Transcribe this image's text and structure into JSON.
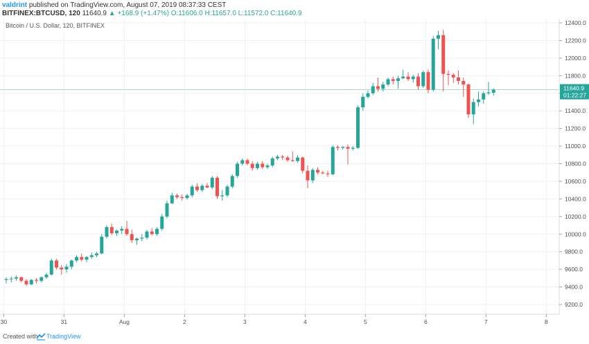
{
  "header": {
    "username": "valdrint",
    "published": "published on TradingView.com, August 07, 2019 08:37:33 CEST",
    "symbol": "BITFINEX:BTCUSD, 120",
    "last": "11640.9",
    "change": "▲ +168.9 (+1.47%)",
    "ohlc": "O:11606.0 H:11657.0 L:11572.0 C:11640.9"
  },
  "footer": {
    "created": "Created with",
    "brand": "TradingView"
  },
  "colors": {
    "up": "#26a69a",
    "down": "#ef5350",
    "grid": "#eef1f4",
    "priceLine": "#a7dbd4",
    "priceLabel": "#26a69a"
  },
  "chart_data": {
    "type": "candlestick",
    "title": "Bitcoin / U.S. Dollar, 120, BITFINEX",
    "xlabel": "",
    "ylabel": "",
    "ylim": [
      9000,
      12500
    ],
    "y_ticks": [
      9200,
      9400,
      9600,
      9800,
      10000,
      10200,
      10400,
      10600,
      10800,
      11000,
      11200,
      11400,
      11600,
      11800,
      12000,
      12200,
      12400
    ],
    "x_ticks": [
      {
        "label": "30",
        "bar": -0.5
      },
      {
        "label": "31",
        "bar": 11.5
      },
      {
        "label": "Aug",
        "bar": 23.5
      },
      {
        "label": "2",
        "bar": 35.5
      },
      {
        "label": "3",
        "bar": 47.5
      },
      {
        "label": "4",
        "bar": 59.5
      },
      {
        "label": "5",
        "bar": 71.5
      },
      {
        "label": "6",
        "bar": 83.5
      },
      {
        "label": "7",
        "bar": 95.5
      },
      {
        "label": "8",
        "bar": 107.5
      }
    ],
    "current_price": 11640.9,
    "current_price_label": "11640.9",
    "countdown": "01:22:27",
    "grid": true,
    "candles": [
      [
        9480,
        9510,
        9440,
        9490
      ],
      [
        9490,
        9520,
        9450,
        9495
      ],
      [
        9495,
        9530,
        9470,
        9510
      ],
      [
        9510,
        9520,
        9450,
        9470
      ],
      [
        9470,
        9490,
        9410,
        9430
      ],
      [
        9430,
        9490,
        9420,
        9480
      ],
      [
        9480,
        9500,
        9440,
        9470
      ],
      [
        9470,
        9520,
        9450,
        9510
      ],
      [
        9510,
        9560,
        9490,
        9540
      ],
      [
        9540,
        9720,
        9530,
        9700
      ],
      [
        9700,
        9720,
        9600,
        9620
      ],
      [
        9620,
        9650,
        9540,
        9600
      ],
      [
        9600,
        9660,
        9560,
        9630
      ],
      [
        9630,
        9710,
        9600,
        9700
      ],
      [
        9700,
        9760,
        9680,
        9740
      ],
      [
        9740,
        9780,
        9690,
        9710
      ],
      [
        9710,
        9750,
        9680,
        9740
      ],
      [
        9740,
        9790,
        9720,
        9760
      ],
      [
        9760,
        9800,
        9740,
        9780
      ],
      [
        9780,
        10000,
        9770,
        9970
      ],
      [
        9970,
        10100,
        9950,
        10080
      ],
      [
        10080,
        10120,
        9990,
        10010
      ],
      [
        10010,
        10050,
        9980,
        10040
      ],
      [
        10040,
        10090,
        10000,
        10060
      ],
      [
        10060,
        10150,
        9980,
        10000
      ],
      [
        10000,
        10050,
        9900,
        9930
      ],
      [
        9930,
        9960,
        9880,
        9950
      ],
      [
        9950,
        10000,
        9920,
        9960
      ],
      [
        9960,
        10050,
        9940,
        10030
      ],
      [
        10030,
        10070,
        9990,
        10000
      ],
      [
        10000,
        10080,
        9980,
        10060
      ],
      [
        10060,
        10230,
        10040,
        10200
      ],
      [
        10200,
        10380,
        10180,
        10350
      ],
      [
        10350,
        10470,
        10340,
        10440
      ],
      [
        10440,
        10460,
        10400,
        10420
      ],
      [
        10420,
        10450,
        10380,
        10410
      ],
      [
        10410,
        10460,
        10390,
        10440
      ],
      [
        10440,
        10560,
        10420,
        10540
      ],
      [
        10540,
        10580,
        10480,
        10500
      ],
      [
        10500,
        10570,
        10480,
        10550
      ],
      [
        10550,
        10580,
        10520,
        10530
      ],
      [
        10530,
        10660,
        10510,
        10640
      ],
      [
        10640,
        10660,
        10400,
        10430
      ],
      [
        10430,
        10500,
        10380,
        10440
      ],
      [
        10440,
        10560,
        10420,
        10540
      ],
      [
        10540,
        10680,
        10520,
        10660
      ],
      [
        10660,
        10820,
        10640,
        10800
      ],
      [
        10800,
        10860,
        10780,
        10840
      ],
      [
        10840,
        10860,
        10780,
        10800
      ],
      [
        10800,
        10830,
        10720,
        10750
      ],
      [
        10750,
        10820,
        10730,
        10800
      ],
      [
        10800,
        10830,
        10740,
        10760
      ],
      [
        10760,
        10800,
        10740,
        10780
      ],
      [
        10780,
        10880,
        10760,
        10860
      ],
      [
        10860,
        10900,
        10840,
        10880
      ],
      [
        10880,
        10900,
        10840,
        10870
      ],
      [
        10870,
        10890,
        10820,
        10840
      ],
      [
        10840,
        10940,
        10820,
        10830
      ],
      [
        10830,
        10900,
        10810,
        10870
      ],
      [
        10870,
        10880,
        10690,
        10720
      ],
      [
        10720,
        10780,
        10520,
        10610
      ],
      [
        10610,
        10750,
        10580,
        10730
      ],
      [
        10730,
        10760,
        10680,
        10700
      ],
      [
        10700,
        10720,
        10680,
        10690
      ],
      [
        10690,
        10720,
        10650,
        10680
      ],
      [
        10680,
        11010,
        10670,
        10990
      ],
      [
        10990,
        11010,
        10950,
        10980
      ],
      [
        10980,
        11000,
        10960,
        10990
      ],
      [
        10990,
        11020,
        10790,
        10970
      ],
      [
        10970,
        11000,
        10950,
        10980
      ],
      [
        10980,
        11460,
        10970,
        11440
      ],
      [
        11440,
        11600,
        11400,
        11560
      ],
      [
        11560,
        11630,
        11540,
        11600
      ],
      [
        11600,
        11720,
        11580,
        11680
      ],
      [
        11680,
        11780,
        11620,
        11650
      ],
      [
        11650,
        11730,
        11620,
        11700
      ],
      [
        11700,
        11780,
        11680,
        11760
      ],
      [
        11760,
        11790,
        11700,
        11740
      ],
      [
        11740,
        11800,
        11650,
        11770
      ],
      [
        11770,
        11870,
        11760,
        11790
      ],
      [
        11790,
        11840,
        11740,
        11760
      ],
      [
        11760,
        11810,
        11720,
        11790
      ],
      [
        11790,
        11830,
        11640,
        11680
      ],
      [
        11680,
        11860,
        11660,
        11840
      ],
      [
        11840,
        11870,
        11600,
        11640
      ],
      [
        11640,
        12250,
        11620,
        12220
      ],
      [
        12220,
        12310,
        12100,
        12260
      ],
      [
        12260,
        12320,
        11620,
        11820
      ],
      [
        11820,
        11860,
        11690,
        11810
      ],
      [
        11810,
        11830,
        11720,
        11780
      ],
      [
        11780,
        11860,
        11700,
        11740
      ],
      [
        11740,
        11780,
        11560,
        11700
      ],
      [
        11700,
        11710,
        11320,
        11360
      ],
      [
        11360,
        11540,
        11250,
        11500
      ],
      [
        11500,
        11620,
        11450,
        11530
      ],
      [
        11530,
        11620,
        11480,
        11600
      ],
      [
        11600,
        11730,
        11580,
        11610
      ],
      [
        11606,
        11657,
        11572,
        11640.9
      ]
    ]
  }
}
